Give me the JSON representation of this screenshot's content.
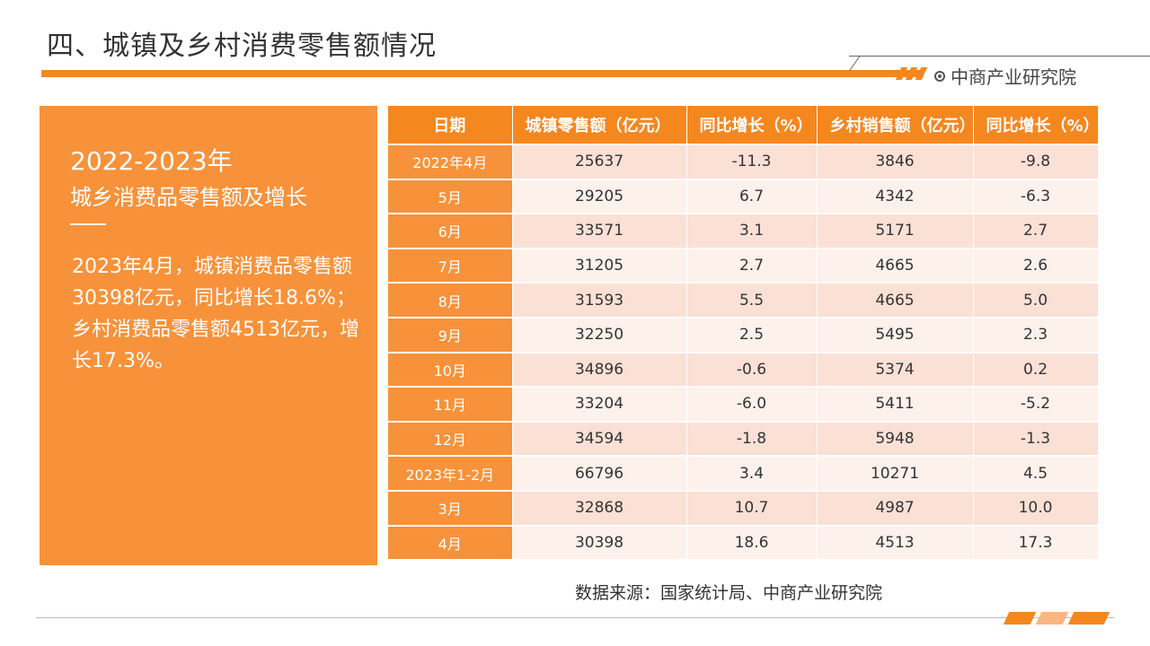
{
  "slide_title": "四、城镇及乡村消费零售额情况",
  "brand": "中商产业研究院",
  "left_panel": {
    "year_range": "2022-2023年",
    "subtitle": "城乡消费品零售额及增长",
    "body": "2023年4月，城镇消费品零售额30398亿元，同比增长18.6%；乡村消费品零售额4513亿元，增长17.3%。"
  },
  "table": {
    "headers": [
      "日期",
      "城镇零售额（亿元）",
      "同比增长（%）",
      "乡村销售额（亿元）",
      "同比增长（%）"
    ],
    "rows": [
      [
        "2022年4月",
        "25637",
        "-11.3",
        "3846",
        "-9.8"
      ],
      [
        "5月",
        "29205",
        "6.7",
        "4342",
        "-6.3"
      ],
      [
        "6月",
        "33571",
        "3.1",
        "5171",
        "2.7"
      ],
      [
        "7月",
        "31205",
        "2.7",
        "4665",
        "2.6"
      ],
      [
        "8月",
        "31593",
        "5.5",
        "4665",
        "5.0"
      ],
      [
        "9月",
        "32250",
        "2.5",
        "5495",
        "2.3"
      ],
      [
        "10月",
        "34896",
        "-0.6",
        "5374",
        "0.2"
      ],
      [
        "11月",
        "33204",
        "-6.0",
        "5411",
        "-5.2"
      ],
      [
        "12月",
        "34594",
        "-1.8",
        "5948",
        "-1.3"
      ],
      [
        "2023年1-2月",
        "66796",
        "3.4",
        "10271",
        "4.5"
      ],
      [
        "3月",
        "32868",
        "10.7",
        "4987",
        "10.0"
      ],
      [
        "4月",
        "30398",
        "18.6",
        "4513",
        "17.3"
      ]
    ]
  },
  "source": "数据来源：国家统计局、中商产业研究院",
  "colors": {
    "accent": "#f5871f",
    "panel": "#f7923a",
    "row_odd": "#fbe0d6",
    "row_even": "#fdf1ec"
  }
}
